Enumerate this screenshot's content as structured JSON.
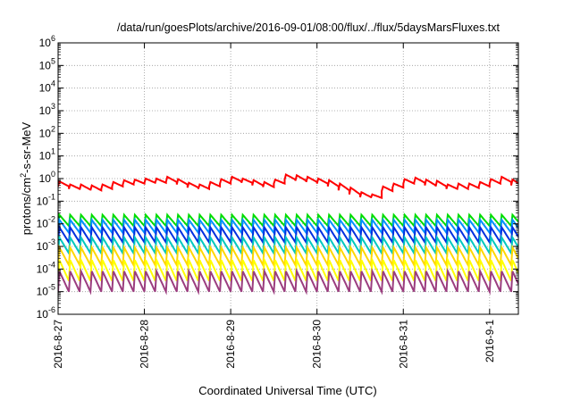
{
  "chart_data": {
    "type": "line",
    "title": "/data/run/goesPlots/archive/2016-09-01/08:00/flux/../flux/5daysMarsFluxes.txt",
    "xlabel": "Coordinated Universal Time (UTC)",
    "ylabel_parts": [
      "protons/cm",
      "2",
      "-s-sr-MeV"
    ],
    "y_scale": "log",
    "ylim": [
      1e-06,
      1000000.0
    ],
    "y_ticks": [
      {
        "base": "10",
        "exp": "-6",
        "value": -6
      },
      {
        "base": "10",
        "exp": "-5",
        "value": -5
      },
      {
        "base": "10",
        "exp": "-4",
        "value": -4
      },
      {
        "base": "10",
        "exp": "-3",
        "value": -3
      },
      {
        "base": "10",
        "exp": "-2",
        "value": -2
      },
      {
        "base": "10",
        "exp": "-1",
        "value": -1
      },
      {
        "base": "10",
        "exp": "0",
        "value": 0
      },
      {
        "base": "10",
        "exp": "1",
        "value": 1
      },
      {
        "base": "10",
        "exp": "2",
        "value": 2
      },
      {
        "base": "10",
        "exp": "3",
        "value": 3
      },
      {
        "base": "10",
        "exp": "4",
        "value": 4
      },
      {
        "base": "10",
        "exp": "5",
        "value": 5
      },
      {
        "base": "10",
        "exp": "6",
        "value": 6
      }
    ],
    "xlim": [
      "2016-08-27 00:00",
      "2016-09-01 08:00"
    ],
    "x_ticks": [
      {
        "label": "2016-8-27",
        "date": "2016-08-27"
      },
      {
        "label": "2016-8-28",
        "date": "2016-08-28"
      },
      {
        "label": "2016-8-29",
        "date": "2016-08-29"
      },
      {
        "label": "2016-8-30",
        "date": "2016-08-30"
      },
      {
        "label": "2016-8-31",
        "date": "2016-08-31"
      },
      {
        "label": "2016-9-1",
        "date": "2016-09-01"
      }
    ],
    "grid": true,
    "series": [
      {
        "color": "#ff0000",
        "cycle_hours": 3,
        "x": [
          "2016-08-27 00:00",
          "2016-08-27 03:00",
          "2016-08-27 06:00",
          "2016-08-27 09:00",
          "2016-08-27 12:00",
          "2016-08-27 15:00",
          "2016-08-27 18:00",
          "2016-08-27 21:00",
          "2016-08-28 00:00",
          "2016-08-28 03:00",
          "2016-08-28 06:00",
          "2016-08-28 09:00",
          "2016-08-28 12:00",
          "2016-08-28 15:00",
          "2016-08-28 18:00",
          "2016-08-28 21:00",
          "2016-08-29 00:00",
          "2016-08-29 03:00",
          "2016-08-29 06:00",
          "2016-08-29 09:00",
          "2016-08-29 12:00",
          "2016-08-29 15:00",
          "2016-08-29 18:00",
          "2016-08-29 21:00",
          "2016-08-30 00:00",
          "2016-08-30 03:00",
          "2016-08-30 06:00",
          "2016-08-30 09:00",
          "2016-08-30 12:00",
          "2016-08-30 15:00",
          "2016-08-30 18:00",
          "2016-08-30 21:00",
          "2016-08-31 00:00",
          "2016-08-31 03:00",
          "2016-08-31 06:00",
          "2016-08-31 09:00",
          "2016-08-31 12:00",
          "2016-08-31 15:00",
          "2016-08-31 18:00",
          "2016-08-31 21:00",
          "2016-09-01 00:00",
          "2016-09-01 03:00",
          "2016-09-01 06:00",
          "2016-09-01 08:00"
        ],
        "peaks": [
          0.75,
          0.55,
          0.55,
          0.5,
          0.55,
          0.7,
          0.85,
          0.9,
          1.0,
          1.0,
          1.2,
          0.95,
          0.65,
          0.55,
          0.7,
          0.95,
          1.2,
          1.0,
          0.85,
          0.7,
          0.9,
          1.5,
          1.4,
          1.2,
          1.0,
          0.85,
          0.6,
          0.4,
          0.25,
          0.2,
          0.45,
          0.6,
          0.95,
          1.1,
          0.9,
          0.8,
          0.55,
          0.6,
          0.6,
          0.7,
          0.95,
          1.2,
          0.9,
          1.1
        ],
        "troughs": [
          0.45,
          0.35,
          0.32,
          0.3,
          0.35,
          0.45,
          0.55,
          0.6,
          0.65,
          0.65,
          0.7,
          0.55,
          0.4,
          0.35,
          0.45,
          0.6,
          0.75,
          0.65,
          0.5,
          0.42,
          0.6,
          0.9,
          0.8,
          0.7,
          0.6,
          0.45,
          0.3,
          0.2,
          0.15,
          0.14,
          0.28,
          0.4,
          0.6,
          0.65,
          0.5,
          0.45,
          0.35,
          0.35,
          0.38,
          0.45,
          0.6,
          0.7,
          0.5,
          0.25
        ]
      },
      {
        "color": "#00dd00",
        "cycle_hours": 3,
        "peak": 0.025,
        "trough": 0.008
      },
      {
        "color": "#0090ff",
        "cycle_hours": 3,
        "peak": 0.015,
        "trough": 0.004
      },
      {
        "color": "#0030e0",
        "cycle_hours": 3,
        "peak": 0.007,
        "trough": 0.0015
      },
      {
        "color": "#00c8c0",
        "cycle_hours": 3,
        "peak": 0.0025,
        "trough": 0.0005
      },
      {
        "color": "#ffd700",
        "cycle_hours": 3,
        "peak": 0.0009,
        "trough": 0.00015
      },
      {
        "color": "#ffff00",
        "cycle_hours": 3,
        "peak": 0.00025,
        "trough": 3e-05
      },
      {
        "color": "#9b3d7f",
        "cycle_hours": 3,
        "peak": 8e-05,
        "trough": 1e-05
      }
    ]
  }
}
